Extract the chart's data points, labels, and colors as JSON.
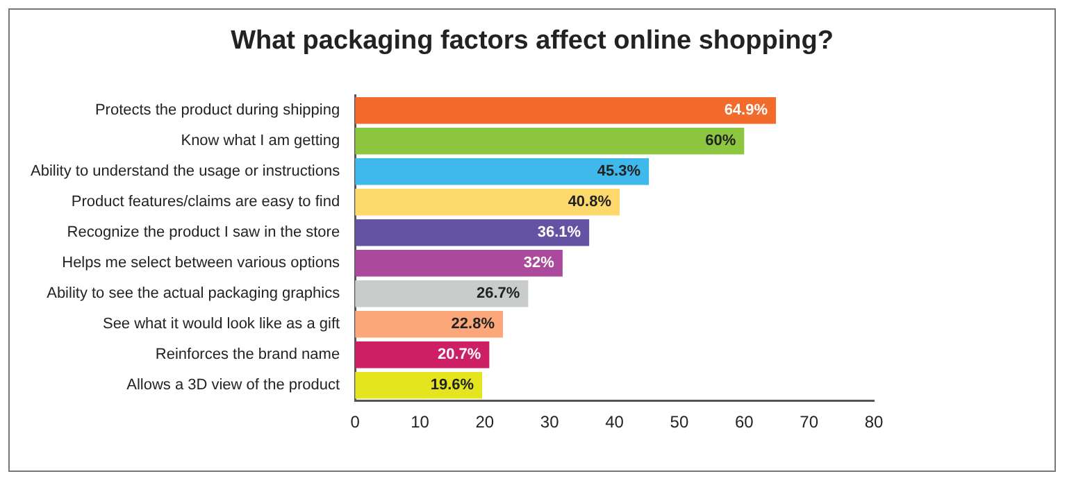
{
  "chart_data": {
    "type": "bar",
    "orientation": "horizontal",
    "title": "What packaging factors affect online shopping?",
    "categories": [
      "Protects the product during shipping",
      "Know what I am getting",
      "Ability to understand the usage or instructions",
      "Product features/claims are easy to find",
      "Recognize the product I saw in the store",
      "Helps me select between various options",
      "Ability to see the actual packaging graphics",
      "See what it would look like as a gift",
      "Reinforces the brand name",
      "Allows a 3D view of the product"
    ],
    "values": [
      64.9,
      60,
      45.3,
      40.8,
      36.1,
      32,
      26.7,
      22.8,
      20.7,
      19.6
    ],
    "colors": [
      "#f26b2a",
      "#8dc63f",
      "#3fb9ec",
      "#fdd96b",
      "#6452a3",
      "#ab4a9c",
      "#c8cccb",
      "#fba77a",
      "#cc1f66",
      "#e4e51e"
    ],
    "value_labels": [
      "64.9%",
      "60%",
      "45.3%",
      "40.8%",
      "36.1%",
      "32%",
      "26.7%",
      "22.8%",
      "20.7%",
      "19.6%"
    ],
    "xlim": [
      0,
      80
    ],
    "xticks": [
      0,
      10,
      20,
      30,
      40,
      50,
      60,
      70,
      80
    ],
    "grid": false,
    "legend": false
  }
}
